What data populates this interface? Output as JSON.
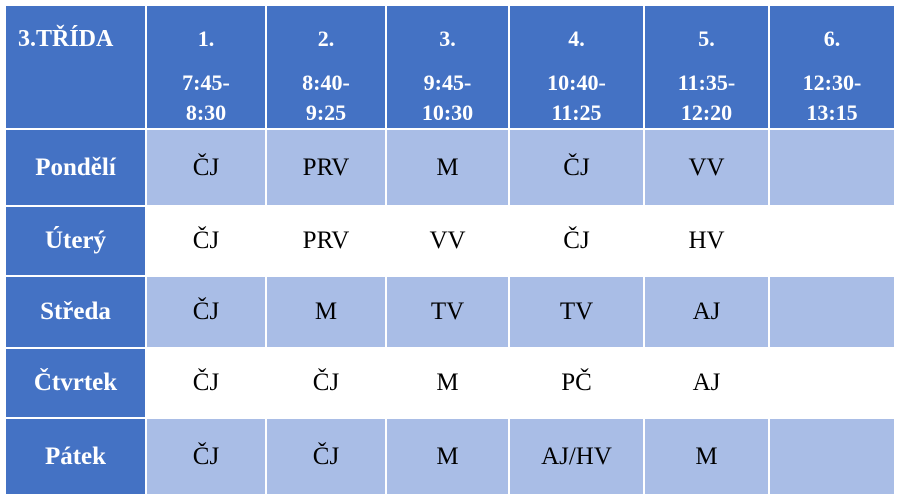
{
  "header": {
    "title": "3.TŘÍDA",
    "periods": [
      {
        "number": "1.",
        "time": "7:45-8:30"
      },
      {
        "number": "2.",
        "time": "8:40-9:25"
      },
      {
        "number": "3.",
        "time": "9:45-10:30"
      },
      {
        "number": "4.",
        "time": "10:40-11:25"
      },
      {
        "number": "5.",
        "time": "11:35-12:20"
      },
      {
        "number": "6.",
        "time": "12:30-13:15"
      }
    ]
  },
  "table": {
    "rows": [
      {
        "day": "Pondělí",
        "lessons": [
          "ČJ",
          "PRV",
          "M",
          "ČJ",
          "VV"
        ]
      },
      {
        "day": "Úterý",
        "lessons": [
          "ČJ",
          "PRV",
          "VV",
          "ČJ",
          "HV"
        ]
      },
      {
        "day": "Středa",
        "lessons": [
          "ČJ",
          "M",
          "TV",
          "TV",
          "AJ"
        ]
      },
      {
        "day": "Čtvrtek",
        "lessons": [
          "ČJ",
          "ČJ",
          "M",
          "PČ",
          "AJ"
        ]
      },
      {
        "day": "Pátek",
        "lessons": [
          "ČJ",
          "ČJ",
          "M",
          "AJ/HV",
          "M"
        ]
      }
    ]
  }
}
